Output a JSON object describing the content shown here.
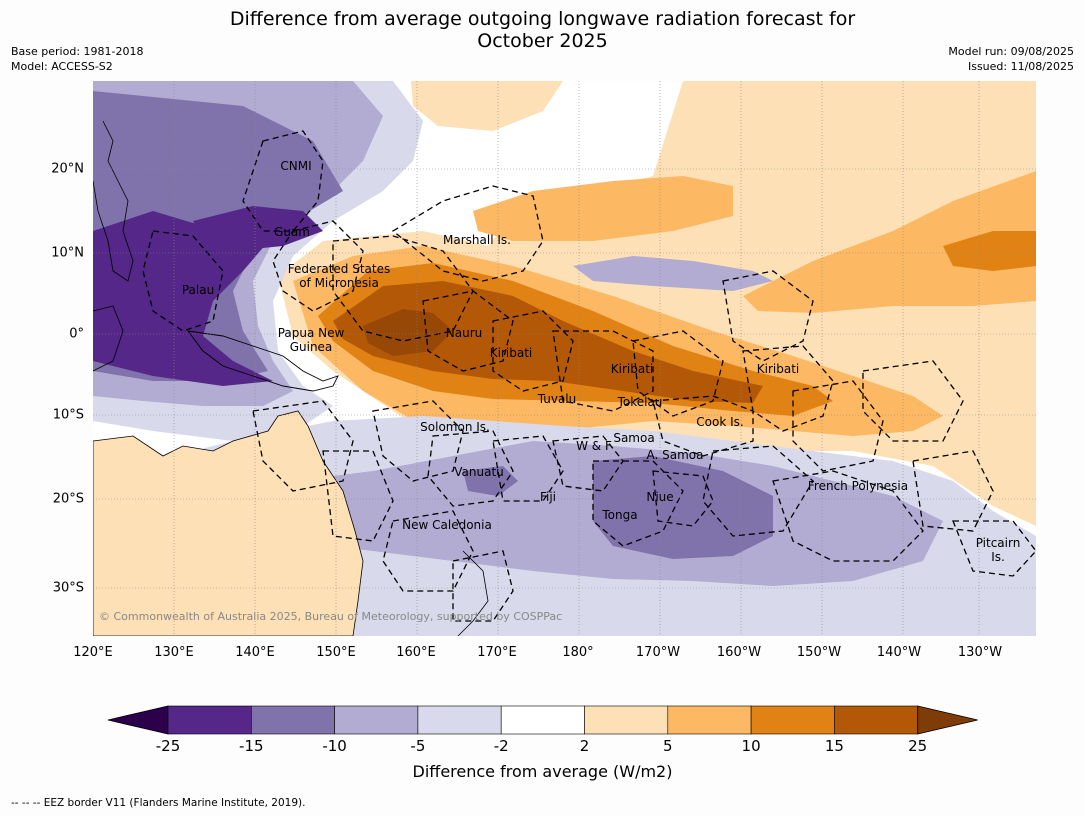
{
  "title_line1": "Difference from average outgoing longwave radiation forecast for",
  "title_line2": "October 2025",
  "base_period": "Base period: 1981-2018",
  "model": "Model: ACCESS-S2",
  "model_run": "Model run: 09/08/2025",
  "issued": "Issued: 11/08/2025",
  "lon_ticks": [
    "120°E",
    "130°E",
    "140°E",
    "150°E",
    "160°E",
    "170°E",
    "180°",
    "170°W",
    "160°W",
    "150°W",
    "140°W",
    "130°W"
  ],
  "lat_ticks": [
    "20°N",
    "10°N",
    "0°",
    "10°S",
    "20°S",
    "30°S"
  ],
  "places": {
    "cnmi": "CNMI",
    "guam": "Guam",
    "marshall": "Marshall Is.",
    "fsm1": "Federated States",
    "fsm2": "of Micronesia",
    "palau": "Palau",
    "png1": "Papua New",
    "png2": "Guinea",
    "nauru": "Nauru",
    "kiribati1": "Kiribati",
    "kiribati2": "Kiribati",
    "kiribati3": "Kiribati",
    "tuvalu": "Tuvalu",
    "tokelau": "Tokelau",
    "cook": "Cook Is.",
    "solomon": "Solomon Is.",
    "samoa": "Samoa",
    "wf": "W & F",
    "asamoa": "A. Samoa",
    "vanuatu": "Vanuatu",
    "fiji": "Fiji",
    "niue": "Niue",
    "tonga": "Tonga",
    "newcal": "New Caledonia",
    "frenchpoly": "French Polynesia",
    "pitcairn1": "Pitcairn",
    "pitcairn2": "Is."
  },
  "copyright": "© Commonwealth of Australia 2025, Bureau of Meteorology, supported by COSPPac",
  "colorbar": {
    "ticks": [
      "-25",
      "-15",
      "-10",
      "-5",
      "-2",
      "2",
      "5",
      "10",
      "15",
      "25"
    ],
    "colors": [
      "#2d004b",
      "#542788",
      "#8073ac",
      "#b2abd2",
      "#d8daeb",
      "#ffffff",
      "#fee0b6",
      "#fdb863",
      "#e08214",
      "#b35806",
      "#7f3b08"
    ],
    "label": "Difference from average (W/m2)"
  },
  "footnote": "--  --  -- EEZ border V11 (Flanders Marine Institute, 2019)."
}
